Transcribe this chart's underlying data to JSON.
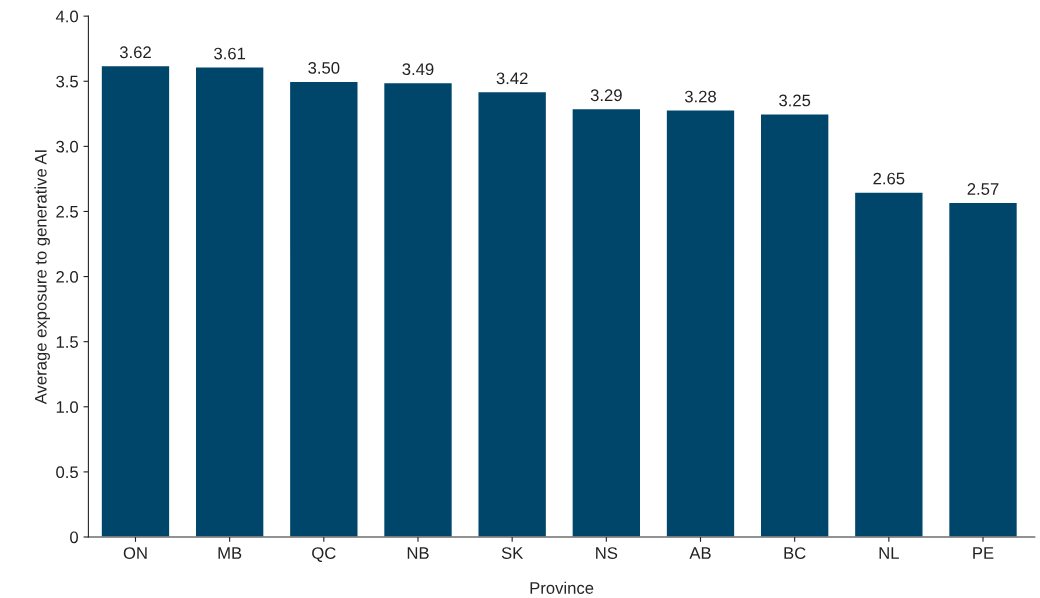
{
  "chart_data": {
    "type": "bar",
    "xlabel": "Province",
    "ylabel": "Average exposure to generative AI",
    "categories": [
      "ON",
      "MB",
      "QC",
      "NB",
      "SK",
      "NS",
      "AB",
      "BC",
      "NL",
      "PE"
    ],
    "values": [
      3.62,
      3.61,
      3.5,
      3.49,
      3.42,
      3.29,
      3.28,
      3.25,
      2.65,
      2.57
    ],
    "value_labels": [
      "3.62",
      "3.61",
      "3.50",
      "3.49",
      "3.42",
      "3.29",
      "3.28",
      "3.25",
      "2.65",
      "2.57"
    ],
    "color": "#00456a",
    "ylim": [
      0,
      4.0
    ],
    "yticks": [
      0,
      {
        "value": 0.5,
        "label": "0.5"
      },
      {
        "value": 1.0,
        "label": "1.0"
      },
      {
        "value": 1.5,
        "label": "1.5"
      },
      {
        "value": 2.0,
        "label": "2.0"
      },
      {
        "value": 2.5,
        "label": "2.5"
      },
      {
        "value": 3.0,
        "label": "3.0"
      },
      {
        "value": 3.5,
        "label": "3.5"
      },
      {
        "value": 4.0,
        "label": "4.0"
      }
    ],
    "grid": false,
    "legend": false
  }
}
